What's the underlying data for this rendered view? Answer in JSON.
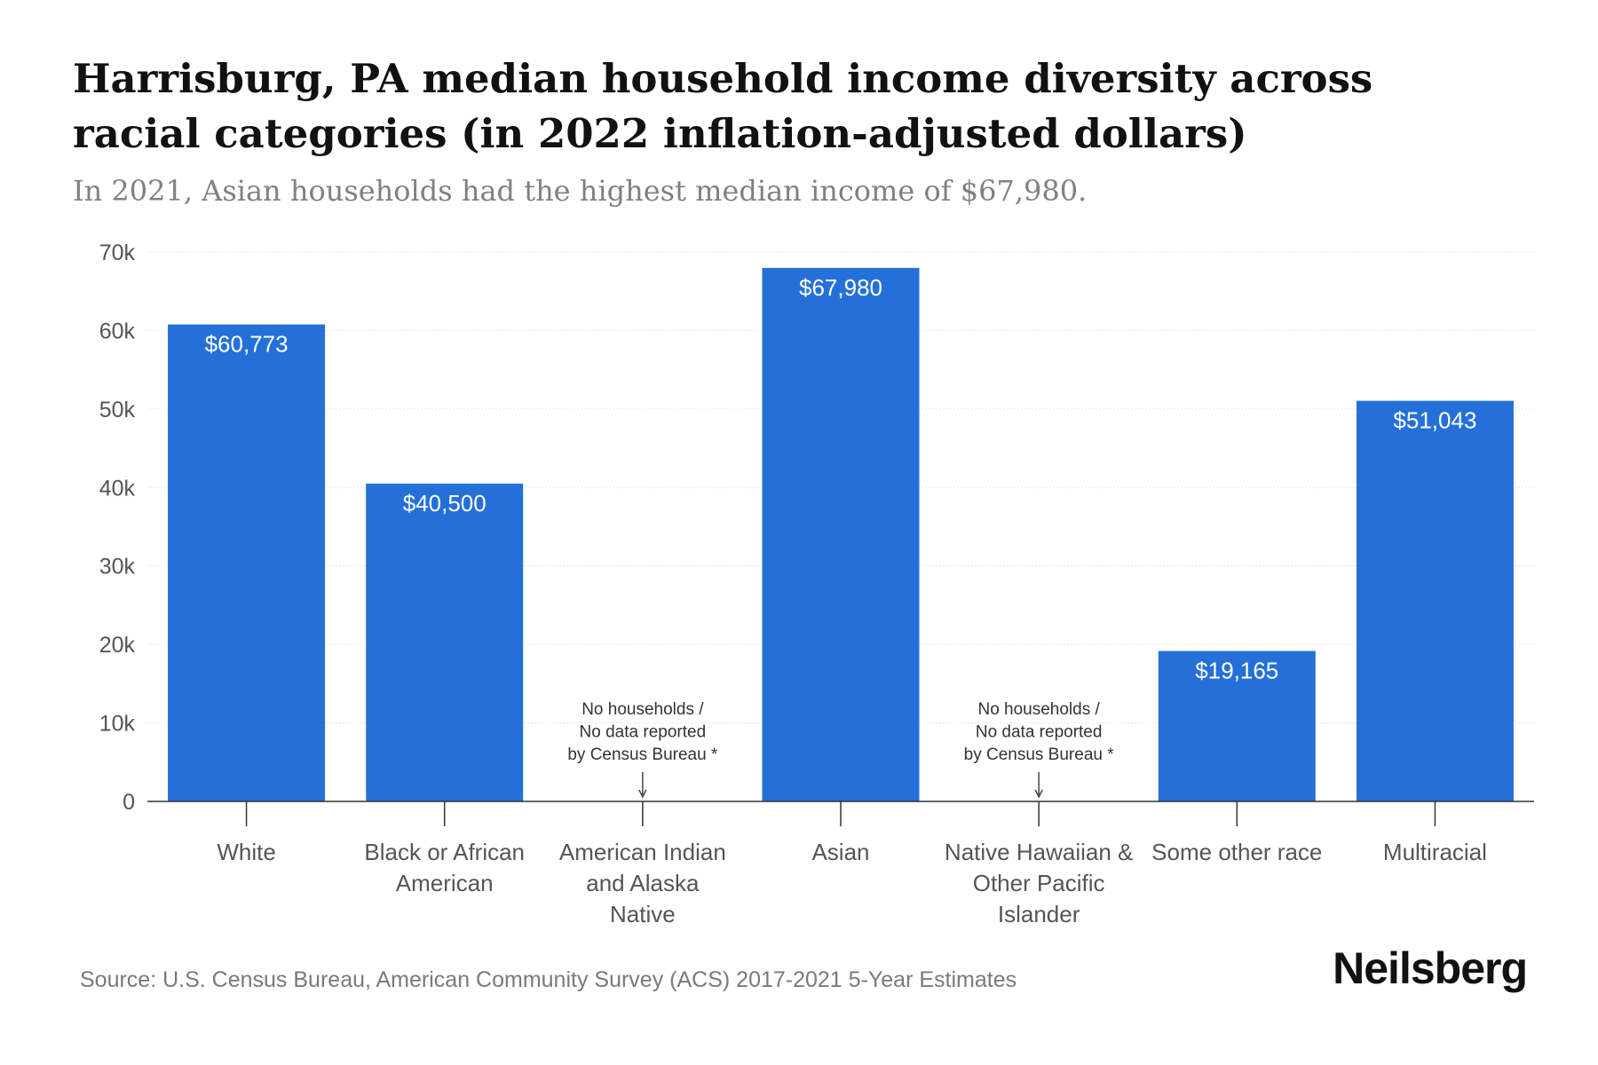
{
  "title": "Harrisburg, PA median household income diversity across racial categories (in 2022 inflation-adjusted dollars)",
  "subtitle": "In 2021, Asian households had the highest median income of $67,980.",
  "source": "Source: U.S. Census Bureau, American Community Survey (ACS) 2017-2021 5-Year Estimates",
  "brand": "Neilsberg",
  "colors": {
    "bar": "#2570d8",
    "bar_label": "#ffffff",
    "axis_text": "#555555",
    "grid": "#e6e6e6",
    "axis_line": "#333333"
  },
  "chart_data": {
    "type": "bar",
    "categories": [
      [
        "White"
      ],
      [
        "Black or African",
        "American"
      ],
      [
        "American Indian",
        "and Alaska",
        "Native"
      ],
      [
        "Asian"
      ],
      [
        "Native Hawaiian &",
        "Other Pacific",
        "Islander"
      ],
      [
        "Some other race"
      ],
      [
        "Multiracial"
      ]
    ],
    "values": [
      60773,
      40500,
      null,
      67980,
      null,
      19165,
      51043
    ],
    "value_labels": [
      "$60,773",
      "$40,500",
      "",
      "$67,980",
      "",
      "$19,165",
      "$51,043"
    ],
    "no_data_note": [
      "No households /",
      "No data reported",
      "by Census Bureau *"
    ],
    "ylim": [
      0,
      70000
    ],
    "yticks": [
      0,
      10000,
      20000,
      30000,
      40000,
      50000,
      60000,
      70000
    ],
    "ytick_labels": [
      "0",
      "10k",
      "20k",
      "30k",
      "40k",
      "50k",
      "60k",
      "70k"
    ],
    "grid": true,
    "xlabel": "",
    "ylabel": ""
  }
}
